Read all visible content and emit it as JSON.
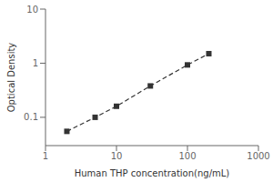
{
  "chart_data": {
    "type": "line",
    "x": [
      2,
      5,
      10,
      30,
      100,
      200
    ],
    "values": [
      0.055,
      0.1,
      0.16,
      0.38,
      0.93,
      1.5
    ],
    "xlabel": "Human THP concentration(ng/mL)",
    "ylabel": "Optical Density",
    "xlim": [
      1,
      1000
    ],
    "ylim": [
      0.03,
      10
    ],
    "xticks": [
      1,
      10,
      100,
      1000
    ],
    "yticks": [
      0.1,
      1,
      10
    ],
    "log": true,
    "grid": false,
    "color": "#333333",
    "marker": "square",
    "line_style": "dashed"
  }
}
